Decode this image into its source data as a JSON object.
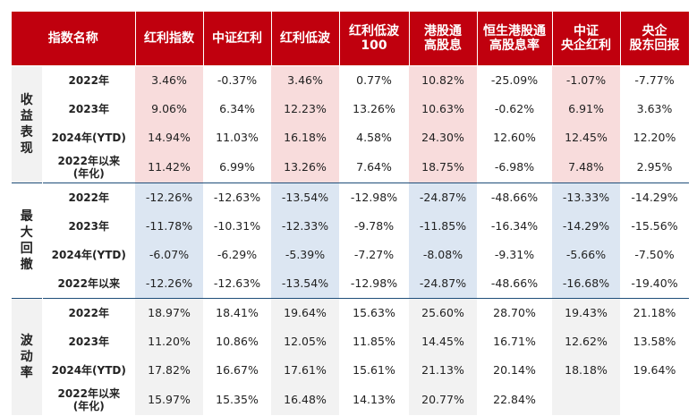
{
  "header": {
    "corner": "指数名称",
    "columns": [
      [
        "红利指数"
      ],
      [
        "中证红利"
      ],
      [
        "红利低波"
      ],
      [
        "红利低波",
        "100"
      ],
      [
        "港股通",
        "高股息"
      ],
      [
        "恒生港股通",
        "高股息率"
      ],
      [
        "中证",
        "央企红利"
      ],
      [
        "央企",
        "股东回报"
      ]
    ]
  },
  "groups": [
    {
      "label": [
        "收",
        "益",
        "表",
        "现"
      ],
      "rows": [
        {
          "label": [
            "2022年"
          ],
          "values": [
            "3.46%",
            "-0.37%",
            "3.46%",
            "0.77%",
            "10.82%",
            "-25.09%",
            "-1.07%",
            "-7.77%"
          ]
        },
        {
          "label": [
            "2023年"
          ],
          "values": [
            "9.06%",
            "6.34%",
            "12.23%",
            "13.26%",
            "10.63%",
            "-0.62%",
            "6.91%",
            "3.63%"
          ]
        },
        {
          "label": [
            "2024年(YTD)"
          ],
          "values": [
            "14.94%",
            "11.03%",
            "16.18%",
            "4.58%",
            "24.30%",
            "12.60%",
            "12.45%",
            "12.20%"
          ]
        },
        {
          "label": [
            "2022年以来",
            "(年化)"
          ],
          "values": [
            "11.42%",
            "6.99%",
            "13.26%",
            "7.64%",
            "18.75%",
            "-6.98%",
            "7.48%",
            "2.95%"
          ]
        }
      ]
    },
    {
      "label": [
        "最",
        "大",
        "回",
        "撤"
      ],
      "rows": [
        {
          "label": [
            "2022年"
          ],
          "values": [
            "-12.26%",
            "-12.63%",
            "-13.54%",
            "-12.98%",
            "-24.87%",
            "-48.66%",
            "-13.33%",
            "-14.29%"
          ]
        },
        {
          "label": [
            "2023年"
          ],
          "values": [
            "-11.78%",
            "-10.31%",
            "-12.33%",
            "-9.78%",
            "-11.85%",
            "-16.34%",
            "-14.29%",
            "-15.56%"
          ]
        },
        {
          "label": [
            "2024年(YTD)"
          ],
          "values": [
            "-6.07%",
            "-6.29%",
            "-5.39%",
            "-7.27%",
            "-8.08%",
            "-9.31%",
            "-5.66%",
            "-7.50%"
          ]
        },
        {
          "label": [
            "2022年以来"
          ],
          "values": [
            "-12.26%",
            "-12.63%",
            "-13.54%",
            "-12.98%",
            "-24.87%",
            "-48.66%",
            "-16.68%",
            "-19.40%"
          ]
        }
      ]
    },
    {
      "label": [
        "波",
        "动",
        "率"
      ],
      "rows": [
        {
          "label": [
            "2022年"
          ],
          "values": [
            "18.97%",
            "18.41%",
            "19.64%",
            "15.63%",
            "25.60%",
            "28.70%",
            "19.43%",
            "21.18%"
          ]
        },
        {
          "label": [
            "2023年"
          ],
          "values": [
            "11.20%",
            "10.86%",
            "12.05%",
            "11.85%",
            "14.45%",
            "16.71%",
            "12.62%",
            "13.58%"
          ]
        },
        {
          "label": [
            "2024年(YTD)"
          ],
          "values": [
            "17.82%",
            "16.67%",
            "17.61%",
            "15.61%",
            "21.13%",
            "20.14%",
            "18.18%",
            "19.64%"
          ]
        },
        {
          "label": [
            "2022年以来",
            "(年化)"
          ],
          "values": [
            "15.97%",
            "15.35%",
            "16.48%",
            "14.13%",
            "20.77%",
            "22.84%",
            "",
            ""
          ]
        }
      ]
    }
  ],
  "colors": {
    "header_bg": "#c0000e",
    "returns_highlight": "#f8dcdc",
    "drawdown_highlight": "#dce6f2",
    "volatility_highlight": "#f2f2f2",
    "group_separator": "#1f4e79"
  }
}
